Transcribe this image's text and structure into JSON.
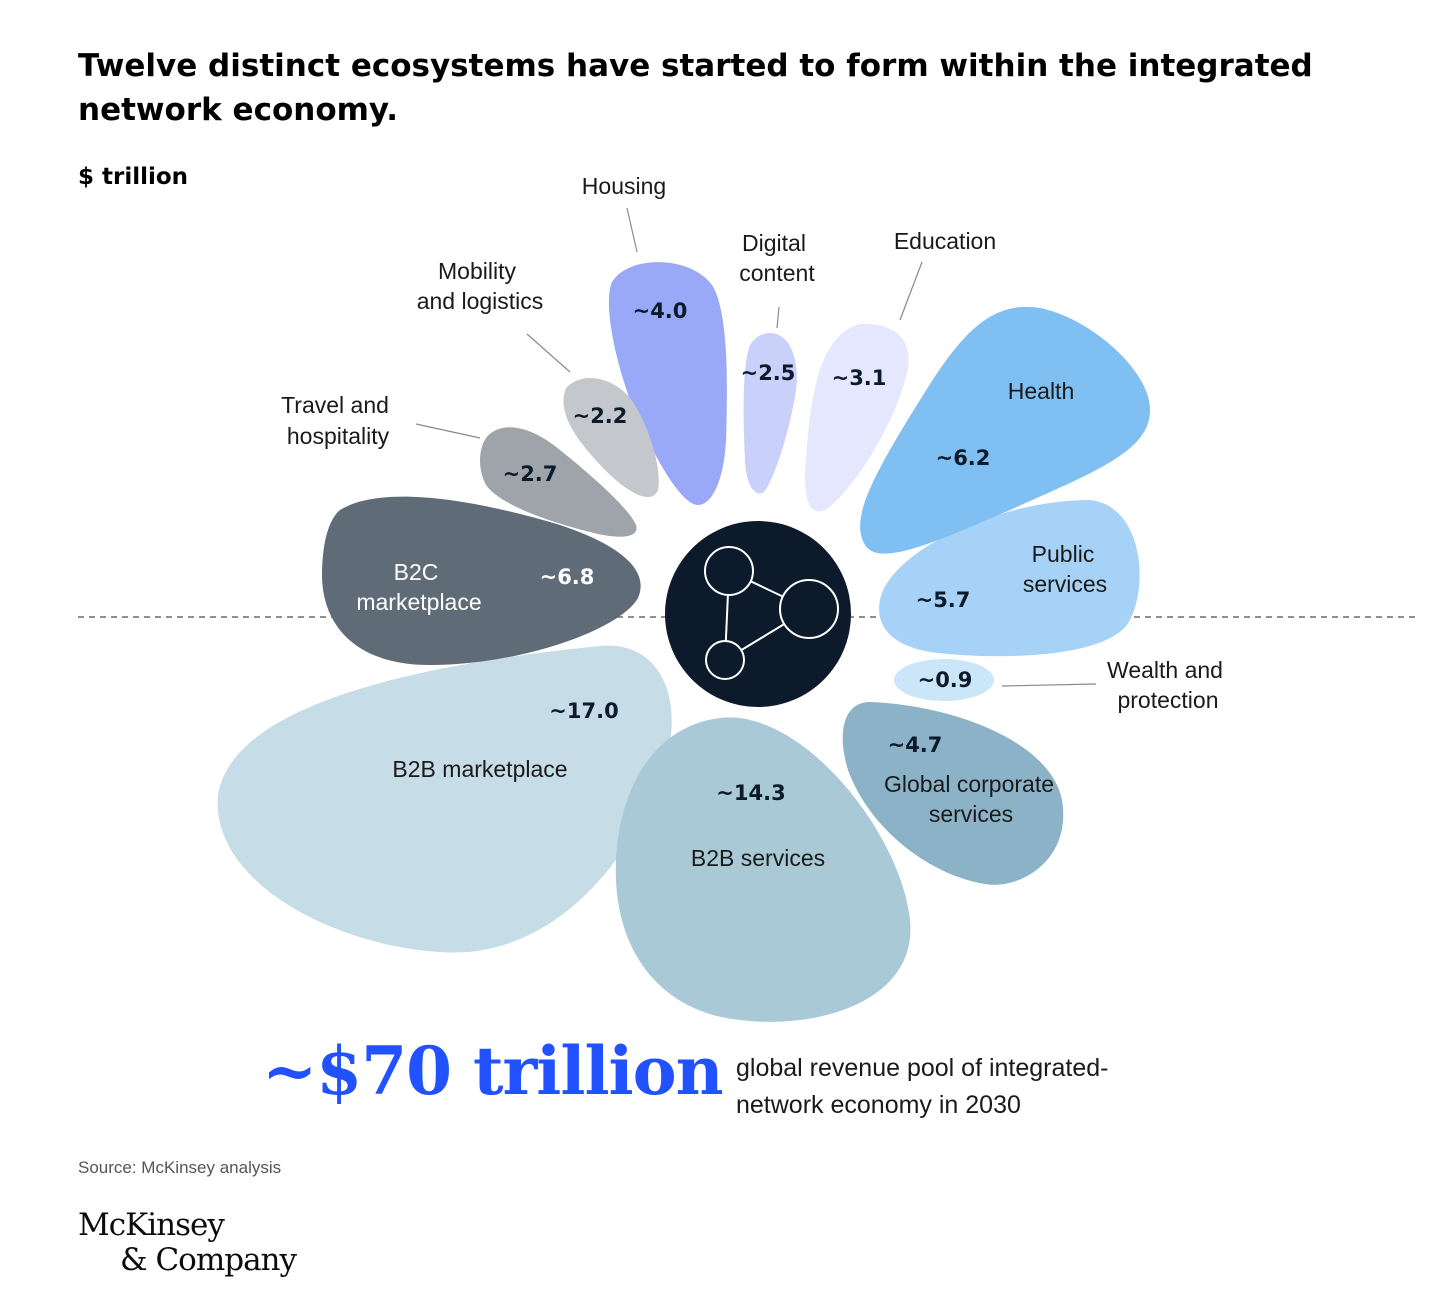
{
  "title": "Twelve distinct ecosystems have started to form within the integrated network economy.",
  "unit": "$ trillion",
  "chart_data": {
    "type": "bubble",
    "unit": "$ trillion",
    "series": [
      {
        "name": "Housing",
        "value": 4.0,
        "value_label": "~4.0",
        "color": "#9aa9f7"
      },
      {
        "name": "Digital content",
        "value": 2.5,
        "value_label": "~2.5",
        "color": "#c9d1fb"
      },
      {
        "name": "Education",
        "value": 3.1,
        "value_label": "~3.1",
        "color": "#e4e7fd"
      },
      {
        "name": "Health",
        "value": 6.2,
        "value_label": "~6.2",
        "color": "#7fbff2"
      },
      {
        "name": "Public services",
        "value": 5.7,
        "value_label": "~5.7",
        "color": "#a5d2f6"
      },
      {
        "name": "Wealth and protection",
        "value": 0.9,
        "value_label": "~0.9",
        "color": "#cbe6f9"
      },
      {
        "name": "Global corporate services",
        "value": 4.7,
        "value_label": "~4.7",
        "color": "#8bb2c7"
      },
      {
        "name": "B2B services",
        "value": 14.3,
        "value_label": "~14.3",
        "color": "#a9c9d6"
      },
      {
        "name": "B2B marketplace",
        "value": 17.0,
        "value_label": "~17.0",
        "color": "#c6dce6"
      },
      {
        "name": "B2C marketplace",
        "value": 6.8,
        "value_label": "~6.8",
        "color": "#606b78"
      },
      {
        "name": "Travel and hospitality",
        "value": 2.7,
        "value_label": "~2.7",
        "color": "#9fa4ab"
      },
      {
        "name": "Mobility and logistics",
        "value": 2.2,
        "value_label": "~2.2",
        "color": "#c4c7cc"
      }
    ]
  },
  "labels": {
    "housing": "Housing",
    "digital": [
      "Digital",
      "content"
    ],
    "education": "Education",
    "health": "Health",
    "public": [
      "Public",
      "services"
    ],
    "wealth": [
      "Wealth and",
      "protection"
    ],
    "global": [
      "Global corporate",
      "services"
    ],
    "b2b_services": "B2B services",
    "b2b_marketplace": "B2B marketplace",
    "b2c": [
      "B2C",
      "marketplace"
    ],
    "travel": [
      "Travel and",
      "hospitality"
    ],
    "mobility": [
      "Mobility",
      "and logistics"
    ]
  },
  "values": {
    "housing": "~4.0",
    "digital": "~2.5",
    "education": "~3.1",
    "health": "~6.2",
    "public": "~5.7",
    "wealth": "~0.9",
    "global": "~4.7",
    "b2b_services": "~14.3",
    "b2b_marketplace": "~17.0",
    "b2c": "~6.8",
    "travel": "~2.7",
    "mobility": "~2.2"
  },
  "total": {
    "value": "~$70 trillion",
    "description": "global revenue pool of integrated-network economy in 2030"
  },
  "source": "Source: McKinsey analysis",
  "logo": [
    "McKinsey",
    "& Company"
  ],
  "colors": {
    "accent": "#2251ff",
    "hub": "#0c1a2b"
  }
}
